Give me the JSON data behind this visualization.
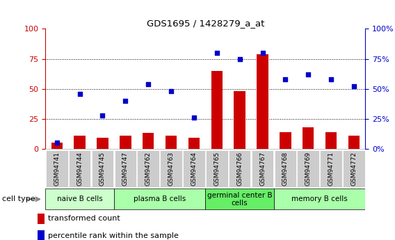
{
  "title": "GDS1695 / 1428279_a_at",
  "samples": [
    "GSM94741",
    "GSM94744",
    "GSM94745",
    "GSM94747",
    "GSM94762",
    "GSM94763",
    "GSM94764",
    "GSM94765",
    "GSM94766",
    "GSM94767",
    "GSM94768",
    "GSM94769",
    "GSM94771",
    "GSM94772"
  ],
  "transformed_count": [
    5,
    11,
    9,
    11,
    13,
    11,
    9,
    65,
    48,
    79,
    14,
    18,
    14,
    11
  ],
  "percentile_rank": [
    5,
    46,
    28,
    40,
    54,
    48,
    26,
    80,
    75,
    80,
    58,
    62,
    58,
    52
  ],
  "cell_type_groups": [
    {
      "label": "naive B cells",
      "start": 0,
      "end": 3,
      "color": "#ccffcc"
    },
    {
      "label": "plasma B cells",
      "start": 3,
      "end": 7,
      "color": "#aaffaa"
    },
    {
      "label": "germinal center B\ncells",
      "start": 7,
      "end": 10,
      "color": "#66ee66"
    },
    {
      "label": "memory B cells",
      "start": 10,
      "end": 14,
      "color": "#aaffaa"
    }
  ],
  "bar_color": "#cc0000",
  "dot_color": "#0000cc",
  "left_axis_color": "#cc0000",
  "right_axis_color": "#0000cc",
  "ylim": [
    0,
    100
  ],
  "yticks": [
    0,
    25,
    50,
    75,
    100
  ],
  "background_color": "#ffffff",
  "legend_bar_label": "transformed count",
  "legend_dot_label": "percentile rank within the sample",
  "bar_width": 0.5,
  "dot_size": 22,
  "sample_bg_color": "#dddddd",
  "naive_color": "#ccffcc",
  "plasma_color": "#aaffaa",
  "germinal_color": "#66ee66",
  "memory_color": "#aaffaa"
}
